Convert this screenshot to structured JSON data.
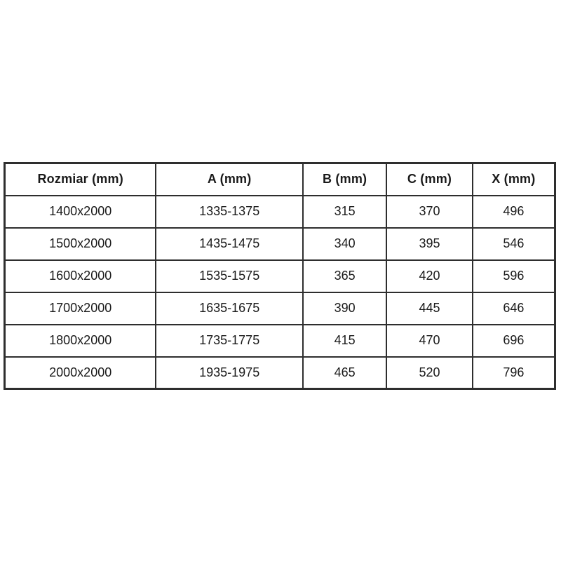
{
  "table": {
    "headers": [
      "Rozmiar (mm)",
      "A (mm)",
      "B (mm)",
      "C (mm)",
      "X (mm)"
    ],
    "rows": [
      [
        "1400x2000",
        "1335-1375",
        "315",
        "370",
        "496"
      ],
      [
        "1500x2000",
        "1435-1475",
        "340",
        "395",
        "546"
      ],
      [
        "1600x2000",
        "1535-1575",
        "365",
        "420",
        "596"
      ],
      [
        "1700x2000",
        "1635-1675",
        "390",
        "445",
        "646"
      ],
      [
        "1800x2000",
        "1735-1775",
        "415",
        "470",
        "696"
      ],
      [
        "2000x2000",
        "1935-1975",
        "465",
        "520",
        "796"
      ]
    ],
    "colors": {
      "border": "#2e2e2e",
      "text": "#1a1a1a",
      "background": "#ffffff"
    }
  }
}
